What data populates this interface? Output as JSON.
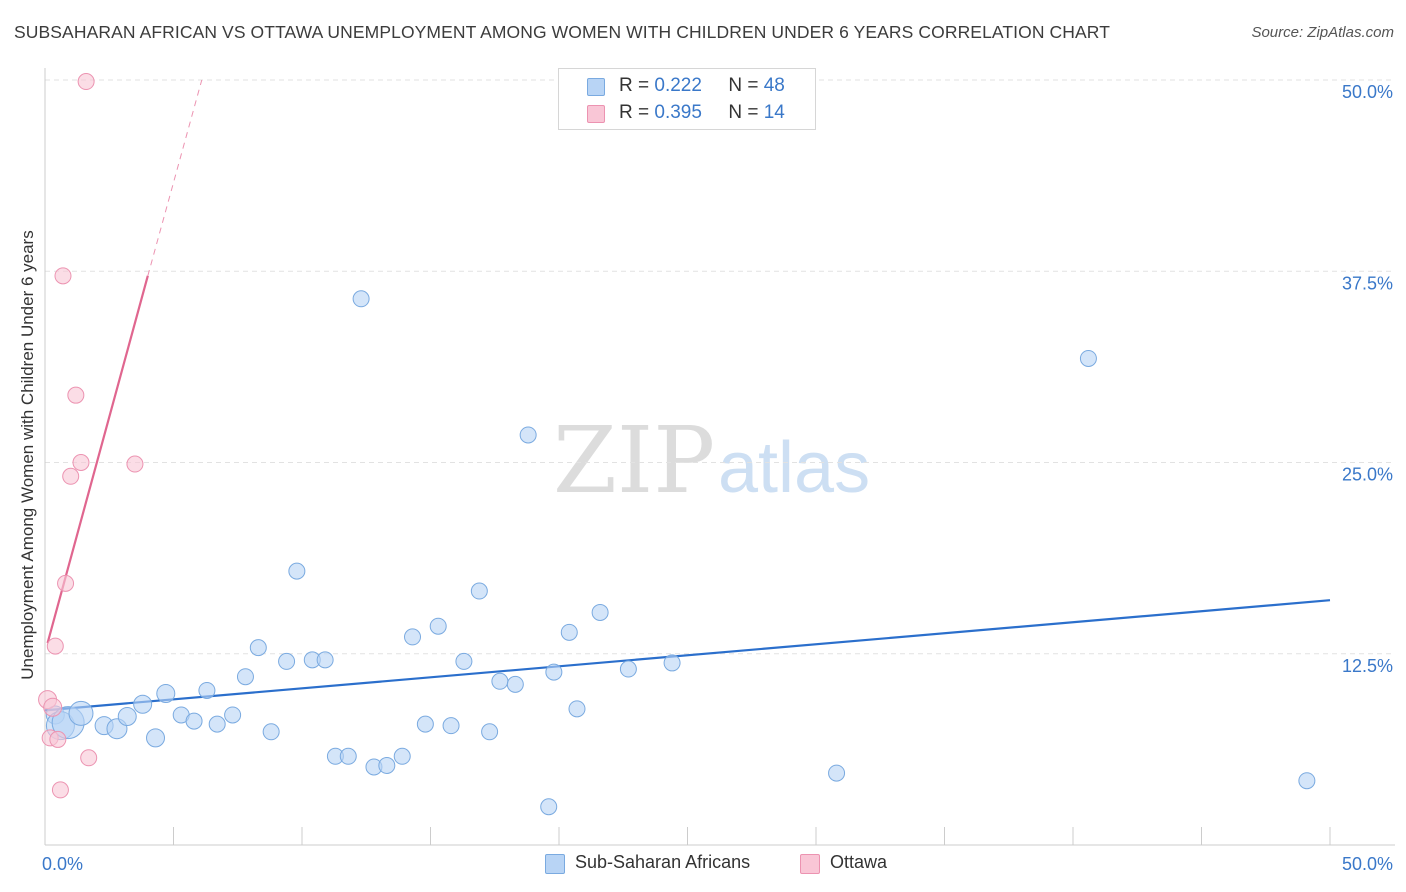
{
  "header": {
    "title": "SUBSAHARAN AFRICAN VS OTTAWA UNEMPLOYMENT AMONG WOMEN WITH CHILDREN UNDER 6 YEARS CORRELATION CHART",
    "source": "Source: ZipAtlas.com"
  },
  "legend": {
    "row1": {
      "r_label": "R =",
      "r_value": "0.222",
      "n_label": "N =",
      "n_value": "48"
    },
    "row2": {
      "r_label": "R =",
      "r_value": "0.395",
      "n_label": "N =",
      "n_value": "14"
    }
  },
  "bottom_legend": {
    "series1": "Sub-Saharan Africans",
    "series2": "Ottawa"
  },
  "watermark": {
    "zip": "ZIP",
    "atlas": "atlas"
  },
  "chart_data": {
    "type": "scatter",
    "title": "SUBSAHARAN AFRICAN VS OTTAWA UNEMPLOYMENT AMONG WOMEN WITH CHILDREN UNDER 6 YEARS CORRELATION CHART",
    "xlabel": "",
    "ylabel": "Unemployment Among Women with Children Under 6 years",
    "xlim": [
      0,
      50
    ],
    "ylim": [
      0,
      50
    ],
    "x_tick_labels": [
      "0.0%",
      "50.0%"
    ],
    "y_ticks": [
      12.5,
      25.0,
      37.5,
      50.0
    ],
    "y_tick_labels": [
      "12.5%",
      "25.0%",
      "37.5%",
      "50.0%"
    ],
    "colors": {
      "blue_fill": "#b8d4f5",
      "blue_edge": "#7aaae0",
      "blue_line": "#2b6fcc",
      "pink_fill": "#f9c6d6",
      "pink_edge": "#ec93b1",
      "pink_line": "#e0668f",
      "axis_text": "#3a78c9"
    },
    "series": [
      {
        "name": "Sub-Saharan Africans",
        "r": 0.222,
        "n": 48,
        "trend": {
          "x": [
            0,
            50
          ],
          "y": [
            8.8,
            16.0
          ]
        },
        "points": [
          {
            "x": 0.4,
            "y": 8.5,
            "s": 9
          },
          {
            "x": 0.6,
            "y": 7.8,
            "s": 14
          },
          {
            "x": 0.9,
            "y": 8.0,
            "s": 16
          },
          {
            "x": 1.4,
            "y": 8.6,
            "s": 12
          },
          {
            "x": 2.3,
            "y": 7.8,
            "s": 9
          },
          {
            "x": 2.8,
            "y": 7.6,
            "s": 10
          },
          {
            "x": 3.2,
            "y": 8.4,
            "s": 9
          },
          {
            "x": 3.8,
            "y": 9.2,
            "s": 9
          },
          {
            "x": 4.3,
            "y": 7.0,
            "s": 9
          },
          {
            "x": 4.7,
            "y": 9.9,
            "s": 9
          },
          {
            "x": 5.3,
            "y": 8.5,
            "s": 8
          },
          {
            "x": 5.8,
            "y": 8.1,
            "s": 8
          },
          {
            "x": 6.3,
            "y": 10.1,
            "s": 8
          },
          {
            "x": 6.7,
            "y": 7.9,
            "s": 8
          },
          {
            "x": 7.3,
            "y": 8.5,
            "s": 8
          },
          {
            "x": 7.8,
            "y": 11.0,
            "s": 8
          },
          {
            "x": 8.3,
            "y": 12.9,
            "s": 8
          },
          {
            "x": 8.8,
            "y": 7.4,
            "s": 8
          },
          {
            "x": 9.4,
            "y": 12.0,
            "s": 8
          },
          {
            "x": 9.8,
            "y": 17.9,
            "s": 8
          },
          {
            "x": 10.4,
            "y": 12.1,
            "s": 8
          },
          {
            "x": 10.9,
            "y": 12.1,
            "s": 8
          },
          {
            "x": 11.3,
            "y": 5.8,
            "s": 8
          },
          {
            "x": 11.8,
            "y": 5.8,
            "s": 8
          },
          {
            "x": 12.3,
            "y": 35.7,
            "s": 8
          },
          {
            "x": 12.8,
            "y": 5.1,
            "s": 8
          },
          {
            "x": 13.3,
            "y": 5.2,
            "s": 8
          },
          {
            "x": 13.9,
            "y": 5.8,
            "s": 8
          },
          {
            "x": 14.3,
            "y": 13.6,
            "s": 8
          },
          {
            "x": 14.8,
            "y": 7.9,
            "s": 8
          },
          {
            "x": 15.3,
            "y": 14.3,
            "s": 8
          },
          {
            "x": 15.8,
            "y": 7.8,
            "s": 8
          },
          {
            "x": 16.3,
            "y": 12.0,
            "s": 8
          },
          {
            "x": 16.9,
            "y": 16.6,
            "s": 8
          },
          {
            "x": 17.3,
            "y": 7.4,
            "s": 8
          },
          {
            "x": 17.7,
            "y": 10.7,
            "s": 8
          },
          {
            "x": 18.3,
            "y": 10.5,
            "s": 8
          },
          {
            "x": 18.8,
            "y": 26.8,
            "s": 8
          },
          {
            "x": 19.6,
            "y": 2.5,
            "s": 8
          },
          {
            "x": 19.8,
            "y": 11.3,
            "s": 8
          },
          {
            "x": 20.4,
            "y": 13.9,
            "s": 8
          },
          {
            "x": 20.7,
            "y": 8.9,
            "s": 8
          },
          {
            "x": 21.6,
            "y": 15.2,
            "s": 8
          },
          {
            "x": 22.7,
            "y": 11.5,
            "s": 8
          },
          {
            "x": 24.4,
            "y": 11.9,
            "s": 8
          },
          {
            "x": 30.8,
            "y": 4.7,
            "s": 8
          },
          {
            "x": 40.6,
            "y": 31.8,
            "s": 8
          },
          {
            "x": 49.1,
            "y": 4.2,
            "s": 8
          }
        ]
      },
      {
        "name": "Ottawa",
        "r": 0.395,
        "n": 14,
        "trend": {
          "x": [
            0.1,
            4.0
          ],
          "y": [
            13.2,
            37.2
          ]
        },
        "trend_dashed": {
          "x": [
            4.0,
            6.1
          ],
          "y": [
            37.2,
            50.0
          ]
        },
        "points": [
          {
            "x": 0.1,
            "y": 9.5,
            "s": 9
          },
          {
            "x": 0.2,
            "y": 7.0,
            "s": 8
          },
          {
            "x": 0.3,
            "y": 9.0,
            "s": 9
          },
          {
            "x": 0.4,
            "y": 13.0,
            "s": 8
          },
          {
            "x": 0.5,
            "y": 6.9,
            "s": 8
          },
          {
            "x": 0.6,
            "y": 3.6,
            "s": 8
          },
          {
            "x": 0.7,
            "y": 37.2,
            "s": 8
          },
          {
            "x": 0.8,
            "y": 17.1,
            "s": 8
          },
          {
            "x": 1.0,
            "y": 24.1,
            "s": 8
          },
          {
            "x": 1.2,
            "y": 29.4,
            "s": 8
          },
          {
            "x": 1.4,
            "y": 25.0,
            "s": 8
          },
          {
            "x": 1.6,
            "y": 49.9,
            "s": 8
          },
          {
            "x": 1.7,
            "y": 5.7,
            "s": 8
          },
          {
            "x": 3.5,
            "y": 24.9,
            "s": 8
          }
        ]
      }
    ]
  }
}
